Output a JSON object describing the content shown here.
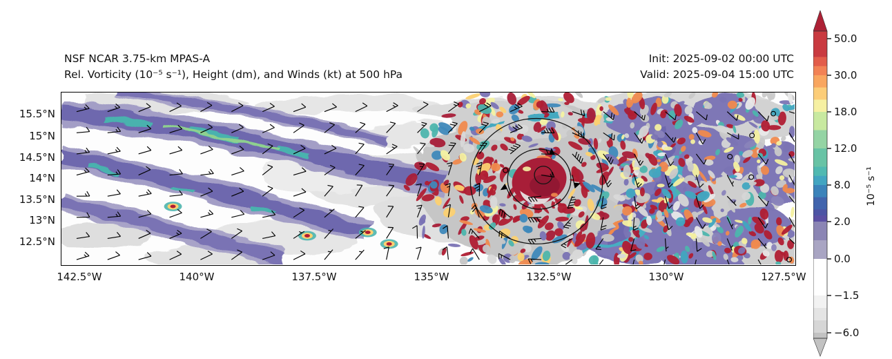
{
  "figure": {
    "title_line1": "NSF NCAR 3.75-km MPAS-A",
    "title_line2": "Rel. Vorticity (10⁻⁵ s⁻¹), Height (dm), and Winds (kt) at 500 hPa",
    "init_line": "Init: 2025-09-02 00:00 UTC",
    "valid_line": "Valid: 2025-09-04 15:00 UTC"
  },
  "chart_data": {
    "type": "heatmap",
    "title": "Rel. Vorticity (10⁻⁵ s⁻¹), Height (dm), and Winds (kt) at 500 hPa",
    "model": "NSF NCAR 3.75-km MPAS-A",
    "level_hPa": 500,
    "init_time": "2025-09-02 00:00 UTC",
    "valid_time": "2025-09-04 15:00 UTC",
    "x_ticks": [
      "142.5°W",
      "140°W",
      "137.5°W",
      "135°W",
      "132.5°W",
      "130°W",
      "127.5°W"
    ],
    "y_ticks": [
      "15.5°N",
      "15°N",
      "14.5°N",
      "14°N",
      "13.5°N",
      "13°N",
      "12.5°N"
    ],
    "extent": {
      "lon_west_to_east": [
        "142.9°W",
        "127.2°W"
      ],
      "lat_south_to_north": [
        "11.95°N",
        "16.0°N"
      ]
    },
    "colorbar": {
      "label": "10⁻⁵ s⁻¹",
      "orientation": "vertical",
      "extend": "both",
      "ticks": [
        50.0,
        30.0,
        18.0,
        12.0,
        8.0,
        2.0,
        0.0,
        -1.5,
        -6.0
      ],
      "tick_labels": [
        "50.0",
        "30.0",
        "18.0",
        "12.0",
        "8.0",
        "2.0",
        "0.0",
        "−1.5",
        "−6.0"
      ],
      "palette": [
        {
          "max": 60,
          "min": 50,
          "color": "#ad2135"
        },
        {
          "max": 50,
          "min": 40,
          "color": "#c93a40"
        },
        {
          "max": 40,
          "min": 35,
          "color": "#e25c4a"
        },
        {
          "max": 35,
          "min": 30,
          "color": "#f28255"
        },
        {
          "max": 30,
          "min": 26,
          "color": "#f9a65f"
        },
        {
          "max": 26,
          "min": 22,
          "color": "#fccd78"
        },
        {
          "max": 22,
          "min": 18,
          "color": "#f6f0a2"
        },
        {
          "max": 18,
          "min": 15,
          "color": "#c8e9a0"
        },
        {
          "max": 15,
          "min": 12,
          "color": "#94d4a4"
        },
        {
          "max": 12,
          "min": 10,
          "color": "#68c3a5"
        },
        {
          "max": 10,
          "min": 9,
          "color": "#50b9b1"
        },
        {
          "max": 9,
          "min": 8,
          "color": "#42a5c1"
        },
        {
          "max": 8,
          "min": 6,
          "color": "#3b83ba"
        },
        {
          "max": 6,
          "min": 4,
          "color": "#4164ad"
        },
        {
          "max": 4,
          "min": 3,
          "color": "#4d54a4"
        },
        {
          "max": 3,
          "min": 2,
          "color": "#5b4fa3"
        },
        {
          "max": 2,
          "min": 1,
          "color": "#8b85b4"
        },
        {
          "max": 1,
          "min": 0,
          "color": "#a9a5c3"
        },
        {
          "max": 0,
          "min": -1.5,
          "color": "#ffffff"
        },
        {
          "max": -1.5,
          "min": -3,
          "color": "#f2f2f2"
        },
        {
          "max": -3,
          "min": -4.5,
          "color": "#e4e4e4"
        },
        {
          "max": -4.5,
          "min": -6,
          "color": "#d6d6d6"
        },
        {
          "max": -6,
          "min": -7,
          "color": "#c2c2c2"
        }
      ]
    },
    "features": {
      "tropical_cyclone": {
        "center_lon": "132.7°W",
        "center_lat": "13.9°N",
        "core_vorticity": "> 50 ×10⁻⁵ s⁻¹",
        "height_contours": "3 closed 500-hPa height contour rings around the vortex center",
        "winds": "40–55 kt cyclonic wind barbs (pennant flags) around the vortex"
      },
      "background_flow": "10–15 kt easterly wind barbs across the western half of the domain",
      "west_region": "elongated WNW–ESE filaments of 2–12 ×10⁻⁵ s⁻¹ vorticity (purple/teal bands)",
      "east_region": "speckled mix of weak positive/negative vorticity with light winds and calm circles"
    }
  }
}
